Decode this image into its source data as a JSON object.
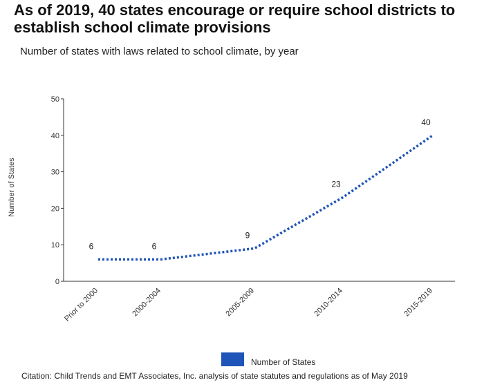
{
  "title": "As of 2019, 40 states encourage or require school districts to establish school climate provisions",
  "subtitle": "Number of states with laws related to school climate, by year",
  "citation": "Citation: Child Trends and EMT Associates, Inc. analysis of state statutes and regulations as of May 2019",
  "colors": {
    "series": "#1f54b8",
    "axis": "#333333"
  },
  "chart_data": {
    "type": "line",
    "title": "As of 2019, 40 states encourage or require school districts to establish school climate provisions",
    "subtitle": "Number of states with laws related to school climate, by year",
    "ylabel": "Number of States",
    "xlabel": "",
    "categories": [
      "Prior to 2000",
      "2000-2004",
      "2005-2009",
      "2010-2014",
      "2015-2019"
    ],
    "series": [
      {
        "name": "Number of States",
        "values": [
          6,
          6,
          9,
          23,
          40
        ],
        "line_style": "dotted"
      }
    ],
    "ylim": [
      0,
      50
    ],
    "yticks": [
      0,
      10,
      20,
      30,
      40,
      50
    ],
    "grid": false,
    "legend": "bottom",
    "data_labels": true
  }
}
